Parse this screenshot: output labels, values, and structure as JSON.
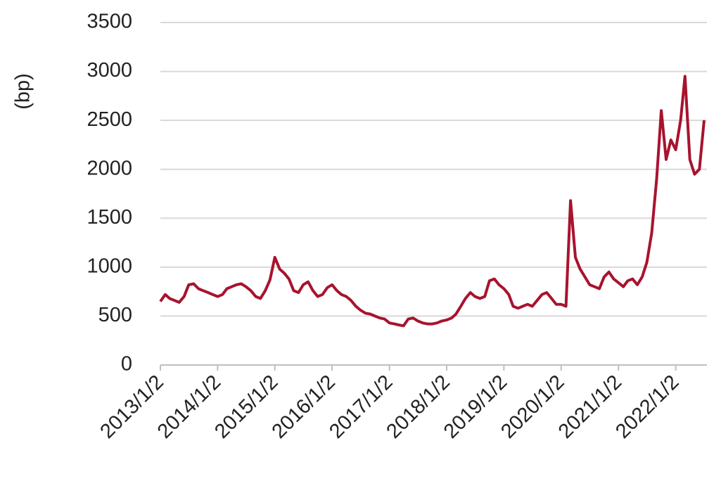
{
  "chart_data": {
    "type": "line",
    "y_label": "(bp)",
    "x": [
      "2013/1/2",
      "2013/2/2",
      "2013/3/2",
      "2013/4/2",
      "2013/5/2",
      "2013/6/2",
      "2013/7/2",
      "2013/8/2",
      "2013/9/2",
      "2013/10/2",
      "2013/11/2",
      "2013/12/2",
      "2014/1/2",
      "2014/2/2",
      "2014/3/2",
      "2014/4/2",
      "2014/5/2",
      "2014/6/2",
      "2014/7/2",
      "2014/8/2",
      "2014/9/2",
      "2014/10/2",
      "2014/11/2",
      "2014/12/2",
      "2015/1/2",
      "2015/2/2",
      "2015/3/2",
      "2015/4/2",
      "2015/5/2",
      "2015/6/2",
      "2015/7/2",
      "2015/8/2",
      "2015/9/2",
      "2015/10/2",
      "2015/11/2",
      "2015/12/2",
      "2016/1/2",
      "2016/2/2",
      "2016/3/2",
      "2016/4/2",
      "2016/5/2",
      "2016/6/2",
      "2016/7/2",
      "2016/8/2",
      "2016/9/2",
      "2016/10/2",
      "2016/11/2",
      "2016/12/2",
      "2017/1/2",
      "2017/2/2",
      "2017/3/2",
      "2017/4/2",
      "2017/5/2",
      "2017/6/2",
      "2017/7/2",
      "2017/8/2",
      "2017/9/2",
      "2017/10/2",
      "2017/11/2",
      "2017/12/2",
      "2018/1/2",
      "2018/2/2",
      "2018/3/2",
      "2018/4/2",
      "2018/5/2",
      "2018/6/2",
      "2018/7/2",
      "2018/8/2",
      "2018/9/2",
      "2018/10/2",
      "2018/11/2",
      "2018/12/2",
      "2019/1/2",
      "2019/2/2",
      "2019/3/2",
      "2019/4/2",
      "2019/5/2",
      "2019/6/2",
      "2019/7/2",
      "2019/8/2",
      "2019/9/2",
      "2019/10/2",
      "2019/11/2",
      "2019/12/2",
      "2020/1/2",
      "2020/2/2",
      "2020/3/2",
      "2020/4/2",
      "2020/5/2",
      "2020/6/2",
      "2020/7/2",
      "2020/8/2",
      "2020/9/2",
      "2020/10/2",
      "2020/11/2",
      "2020/12/2",
      "2021/1/2",
      "2021/2/2",
      "2021/3/2",
      "2021/4/2",
      "2021/5/2",
      "2021/6/2",
      "2021/7/2",
      "2021/8/2",
      "2021/9/2",
      "2021/10/2",
      "2021/11/2",
      "2021/12/2",
      "2022/1/2",
      "2022/2/2",
      "2022/3/2",
      "2022/4/2",
      "2022/5/2",
      "2022/6/2",
      "2022/7/2"
    ],
    "series": [
      {
        "color": "#a8132e",
        "values": [
          650,
          720,
          680,
          660,
          640,
          700,
          820,
          830,
          780,
          760,
          740,
          720,
          700,
          720,
          780,
          800,
          820,
          830,
          800,
          760,
          700,
          680,
          760,
          870,
          1100,
          980,
          940,
          880,
          760,
          740,
          820,
          850,
          760,
          700,
          720,
          790,
          820,
          760,
          720,
          700,
          660,
          600,
          560,
          530,
          520,
          500,
          480,
          470,
          430,
          420,
          410,
          400,
          470,
          480,
          450,
          430,
          420,
          420,
          430,
          450,
          460,
          480,
          520,
          600,
          680,
          740,
          700,
          680,
          700,
          860,
          880,
          820,
          780,
          720,
          600,
          580,
          600,
          620,
          600,
          660,
          720,
          740,
          680,
          620,
          620,
          600,
          1680,
          1100,
          980,
          900,
          820,
          800,
          780,
          900,
          950,
          880,
          840,
          800,
          860,
          880,
          820,
          900,
          1050,
          1350,
          1900,
          2600,
          2100,
          2300,
          2200,
          2500,
          2950,
          2100,
          1950,
          2000,
          2500
        ]
      }
    ],
    "xlim": [
      "2013/1/2",
      "2022/7/20"
    ],
    "xticks": [
      "2013/1/2",
      "2014/1/2",
      "2015/1/2",
      "2016/1/2",
      "2017/1/2",
      "2018/1/2",
      "2019/1/2",
      "2020/1/2",
      "2021/1/2",
      "2022/1/2"
    ],
    "ylim": [
      0,
      3500
    ],
    "yticks": [
      0,
      500,
      1000,
      1500,
      2000,
      2500,
      3000,
      3500
    ],
    "grid": true
  }
}
